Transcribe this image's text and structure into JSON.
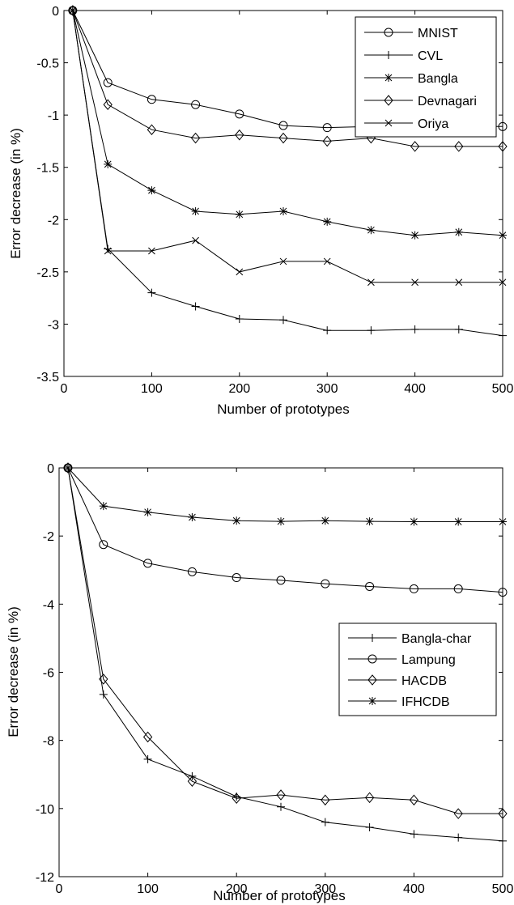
{
  "colors": {
    "line": "#000000",
    "background": "#ffffff",
    "axes": "#000000"
  },
  "chart_data": [
    {
      "type": "line",
      "title": "",
      "xlabel": "Number of prototypes",
      "ylabel": "Error decrease (in %)",
      "xlim": [
        0,
        500
      ],
      "ylim": [
        -3.5,
        0
      ],
      "x_ticks": [
        0,
        100,
        200,
        300,
        400,
        500
      ],
      "y_ticks": [
        0,
        -0.5,
        -1,
        -1.5,
        -2,
        -2.5,
        -3,
        -3.5
      ],
      "x_tick_labels": [
        "0",
        "100",
        "200",
        "300",
        "400",
        "500"
      ],
      "y_tick_labels": [
        "0",
        "-0.5",
        "-1",
        "-1.5",
        "-2",
        "-2.5",
        "-3",
        "-3.5"
      ],
      "grid": false,
      "legend_position": "top-right",
      "x": [
        10,
        50,
        100,
        150,
        200,
        250,
        300,
        350,
        400,
        450,
        500
      ],
      "series": [
        {
          "name": "MNIST",
          "marker": "circle",
          "values": [
            0,
            -0.69,
            -0.85,
            -0.9,
            -0.99,
            -1.1,
            -1.12,
            -1.11,
            -1.11,
            -1.11,
            -1.11
          ]
        },
        {
          "name": "CVL",
          "marker": "plus",
          "values": [
            0,
            -2.28,
            -2.7,
            -2.83,
            -2.95,
            -2.96,
            -3.06,
            -3.06,
            -3.05,
            -3.05,
            -3.11
          ]
        },
        {
          "name": "Bangla",
          "marker": "asterisk",
          "values": [
            0,
            -1.47,
            -1.72,
            -1.92,
            -1.95,
            -1.92,
            -2.02,
            -2.1,
            -2.15,
            -2.12,
            -2.15
          ]
        },
        {
          "name": "Devnagari",
          "marker": "diamond",
          "values": [
            0,
            -0.9,
            -1.14,
            -1.22,
            -1.19,
            -1.22,
            -1.25,
            -1.22,
            -1.3,
            -1.3,
            -1.3
          ]
        },
        {
          "name": "Oriya",
          "marker": "x",
          "values": [
            0,
            -2.3,
            -2.3,
            -2.2,
            -2.5,
            -2.4,
            -2.4,
            -2.6,
            -2.6,
            -2.6,
            -2.6
          ]
        }
      ]
    },
    {
      "type": "line",
      "title": "",
      "xlabel": "Number of prototypes",
      "ylabel": "Error decrease (in %)",
      "xlim": [
        0,
        500
      ],
      "ylim": [
        -12,
        0
      ],
      "x_ticks": [
        0,
        100,
        200,
        300,
        400,
        500
      ],
      "y_ticks": [
        0,
        -2,
        -4,
        -6,
        -8,
        -10,
        -12
      ],
      "x_tick_labels": [
        "0",
        "100",
        "200",
        "300",
        "400",
        "500"
      ],
      "y_tick_labels": [
        "0",
        "-2",
        "-4",
        "-6",
        "-8",
        "-10",
        "-12"
      ],
      "grid": false,
      "legend_position": "center-right",
      "x": [
        10,
        50,
        100,
        150,
        200,
        250,
        300,
        350,
        400,
        450,
        500
      ],
      "series": [
        {
          "name": "Bangla-char",
          "marker": "plus",
          "values": [
            0,
            -6.65,
            -8.55,
            -9.05,
            -9.65,
            -9.95,
            -10.4,
            -10.55,
            -10.75,
            -10.85,
            -10.95
          ]
        },
        {
          "name": "Lampung",
          "marker": "circle",
          "values": [
            0,
            -2.25,
            -2.8,
            -3.05,
            -3.22,
            -3.3,
            -3.4,
            -3.48,
            -3.55,
            -3.55,
            -3.65
          ]
        },
        {
          "name": "HACDB",
          "marker": "diamond",
          "values": [
            0,
            -6.2,
            -7.9,
            -9.2,
            -9.7,
            -9.6,
            -9.75,
            -9.68,
            -9.75,
            -10.15,
            -10.15
          ]
        },
        {
          "name": "IFHCDB",
          "marker": "asterisk",
          "values": [
            0,
            -1.12,
            -1.3,
            -1.45,
            -1.55,
            -1.57,
            -1.55,
            -1.57,
            -1.58,
            -1.58,
            -1.58
          ]
        }
      ]
    }
  ]
}
